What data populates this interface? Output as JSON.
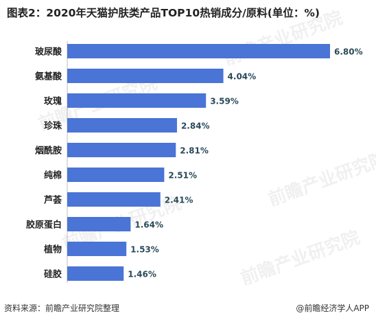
{
  "title": "图表2：2020年天猫护肤类产品TOP10热销成分/原料(单位：%)",
  "source": "资料来源：前瞻产业研究院整理",
  "credit": "@前瞻经济学人APP",
  "watermark": "前瞻产业研究院",
  "colors": {
    "bar": "#4a74d5",
    "value_label": "#2a4a5a",
    "category_label": "#222222"
  },
  "chart_data": {
    "type": "bar",
    "orientation": "horizontal",
    "title": "图表2：2020年天猫护肤类产品TOP10热销成分/原料(单位：%)",
    "categories": [
      "玻尿酸",
      "氨基酸",
      "玫瑰",
      "珍珠",
      "烟酰胺",
      "纯棉",
      "芦荟",
      "胶原蛋白",
      "植物",
      "硅胶"
    ],
    "values": [
      6.8,
      4.04,
      3.59,
      2.84,
      2.81,
      2.51,
      2.41,
      1.64,
      1.53,
      1.46
    ],
    "value_labels": [
      "6.80%",
      "4.04%",
      "3.59%",
      "2.84%",
      "2.81%",
      "2.51%",
      "2.41%",
      "1.64%",
      "1.53%",
      "1.46%"
    ],
    "xlim": [
      0,
      6.8
    ],
    "grid": false,
    "legend": "none"
  }
}
